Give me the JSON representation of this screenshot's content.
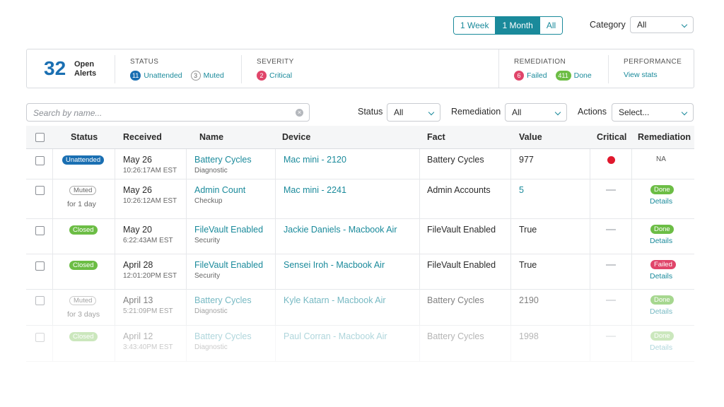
{
  "range": {
    "options": [
      "1 Week",
      "1 Month",
      "All"
    ],
    "selected": "1 Month"
  },
  "category": {
    "label": "Category",
    "value": "All"
  },
  "summary": {
    "open_count": "32",
    "open_label": "Open Alerts",
    "status": {
      "title": "STATUS",
      "unattended_count": "11",
      "unattended_label": "Unattended",
      "muted_count": "3",
      "muted_label": "Muted"
    },
    "severity": {
      "title": "SEVERITY",
      "critical_count": "2",
      "critical_label": "Critical"
    },
    "remediation": {
      "title": "REMEDIATION",
      "failed_count": "6",
      "failed_label": "Failed",
      "done_count": "411",
      "done_label": "Done"
    },
    "performance": {
      "title": "PERFORMANCE",
      "link": "View stats"
    }
  },
  "filters": {
    "search_placeholder": "Search by name...",
    "status_label": "Status",
    "status_value": "All",
    "remediation_label": "Remediation",
    "remediation_value": "All",
    "actions_label": "Actions",
    "actions_value": "Select..."
  },
  "table": {
    "headers": [
      "Status",
      "Received",
      "Name",
      "Device",
      "Fact",
      "Value",
      "Critical",
      "Remediation"
    ],
    "rows": [
      {
        "status": "Unattended",
        "status_sub": "",
        "date": "May 26",
        "time": "10:26:17AM EST",
        "name": "Battery Cycles",
        "name_sub": "Diagnostic",
        "device": "Mac mini - 2120",
        "fact": "Battery Cycles",
        "value": "977",
        "critical": true,
        "remediation": "NA",
        "details": ""
      },
      {
        "status": "Muted",
        "status_sub": "for 1 day",
        "date": "May 26",
        "time": "10:26:12AM EST",
        "name": "Admin Count",
        "name_sub": "Checkup",
        "device": "Mac mini - 2241",
        "fact": "Admin Accounts",
        "value": "5",
        "critical": false,
        "remediation": "Done",
        "details": "Details"
      },
      {
        "status": "Closed",
        "status_sub": "",
        "date": "May 20",
        "time": "6:22:43AM EST",
        "name": "FileVault Enabled",
        "name_sub": "Security",
        "device": "Jackie Daniels - Macbook Air",
        "fact": "FileVault Enabled",
        "value": "True",
        "critical": false,
        "remediation": "Done",
        "details": "Details"
      },
      {
        "status": "Closed",
        "status_sub": "",
        "date": "April 28",
        "time": "12:01:20PM EST",
        "name": "FileVault Enabled",
        "name_sub": "Security",
        "device": "Sensei Iroh - Macbook Air",
        "fact": "FileVault Enabled",
        "value": "True",
        "critical": false,
        "remediation": "Failed",
        "details": "Details"
      },
      {
        "status": "Muted",
        "status_sub": "for 3 days",
        "date": "April 13",
        "time": "5:21:09PM EST",
        "name": "Battery Cycles",
        "name_sub": "Diagnostic",
        "device": "Kyle Katarn - Macbook Air",
        "fact": "Battery Cycles",
        "value": "2190",
        "critical": false,
        "remediation": "Done",
        "details": "Details"
      },
      {
        "status": "Closed",
        "status_sub": "",
        "date": "April 12",
        "time": "3:43:40PM EST",
        "name": "Battery Cycles",
        "name_sub": "Diagnostic",
        "device": "Paul Corran - Macbook Air",
        "fact": "Battery Cycles",
        "value": "1998",
        "critical": false,
        "remediation": "Done",
        "details": "Details"
      }
    ]
  }
}
